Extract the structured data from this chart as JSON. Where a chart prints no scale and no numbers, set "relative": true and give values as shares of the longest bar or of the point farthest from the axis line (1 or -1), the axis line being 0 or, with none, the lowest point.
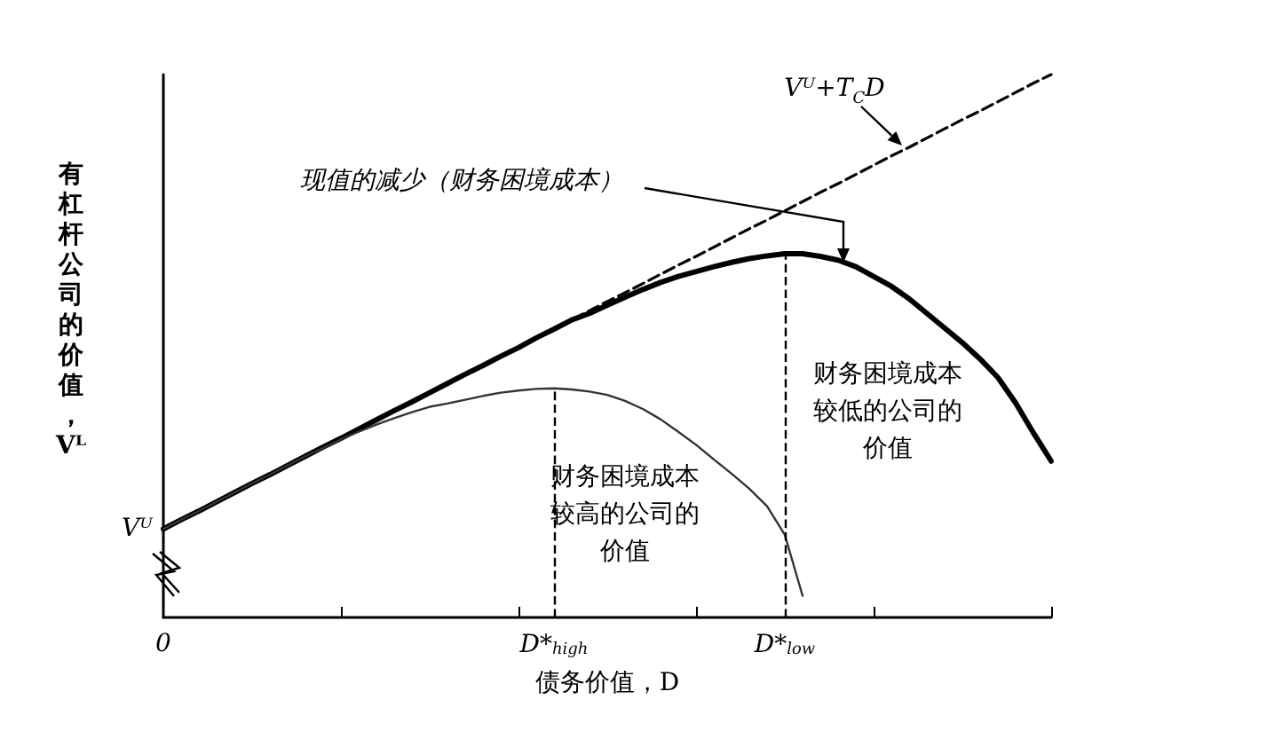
{
  "chart_data": {
    "type": "line",
    "xlabel": "债务价值，D",
    "ylabel": "有杠杆公司的价值，Vᴸ",
    "relative": true,
    "categories": [
      "0",
      null,
      null,
      null,
      null,
      null,
      null,
      null,
      null,
      null,
      null,
      null,
      null,
      null,
      null,
      null,
      null,
      null,
      null,
      null,
      null,
      null,
      "D*$_{high}$",
      null,
      null,
      null,
      null,
      null,
      null,
      null,
      null,
      null,
      null,
      null,
      null,
      "D*$_{low}$",
      null,
      null,
      null,
      null,
      null,
      null,
      null,
      null,
      null,
      null,
      null,
      null,
      null,
      null,
      null
    ],
    "marker": "none",
    "series": [
      {
        "color": "#000000",
        "line_style": "dashed",
        "values": [
          0.163,
          0.18,
          0.196,
          0.213,
          0.23,
          0.247,
          0.263,
          0.28,
          0.297,
          0.314,
          0.33,
          0.347,
          0.364,
          0.381,
          0.397,
          0.414,
          0.431,
          0.448,
          0.464,
          0.481,
          0.498,
          0.515,
          0.531,
          0.548,
          0.565,
          0.582,
          0.598,
          0.615,
          0.632,
          0.649,
          0.665,
          0.682,
          0.699,
          0.716,
          0.732,
          0.749,
          0.766,
          0.783,
          0.799,
          0.816,
          0.833,
          0.85,
          0.866,
          0.883,
          0.9,
          0.917,
          0.933,
          0.95,
          0.967,
          0.984,
          1.0
        ]
      },
      {
        "color": "#000000",
        "line_style": "solid",
        "values": [
          0.163,
          0.18,
          0.196,
          0.213,
          0.23,
          0.247,
          0.263,
          0.28,
          0.297,
          0.314,
          0.33,
          0.347,
          0.364,
          0.381,
          0.397,
          0.414,
          0.431,
          0.448,
          0.464,
          0.481,
          0.497,
          0.515,
          0.531,
          0.548,
          0.56,
          0.575,
          0.59,
          0.604,
          0.617,
          0.628,
          0.637,
          0.646,
          0.654,
          0.661,
          0.666,
          0.67,
          0.67,
          0.665,
          0.658,
          0.646,
          0.628,
          0.61,
          0.587,
          0.56,
          0.533,
          0.506,
          0.476,
          0.442,
          0.395,
          0.34,
          0.288
        ]
      },
      {
        "color": "#333333",
        "line_style": "solid",
        "values": [
          0.163,
          0.18,
          0.196,
          0.213,
          0.23,
          0.247,
          0.263,
          0.28,
          0.297,
          0.312,
          0.328,
          0.342,
          0.355,
          0.367,
          0.378,
          0.388,
          0.394,
          0.401,
          0.408,
          0.414,
          0.418,
          0.421,
          0.422,
          0.42,
          0.416,
          0.41,
          0.399,
          0.384,
          0.365,
          0.342,
          0.318,
          0.291,
          0.265,
          0.237,
          0.205,
          0.152,
          0.04,
          null,
          null,
          null,
          null,
          null,
          null,
          null,
          null,
          null,
          null,
          null,
          null,
          null,
          null
        ]
      }
    ],
    "ref_lines": [
      {
        "axis": "x",
        "value": "D*$_{high}$",
        "line_style": "dashed",
        "color": "#000000"
      },
      {
        "axis": "x",
        "value": "D*$_{low}$",
        "line_style": "dashed",
        "color": "#000000"
      }
    ],
    "annotations": [
      "现值的减少（财务困境成本）",
      "Vᵁ+T$_{C}$D",
      "财务困境成本较高的公司的价值",
      "财务困境成本较低的公司的价值",
      "Vᵁ"
    ]
  }
}
